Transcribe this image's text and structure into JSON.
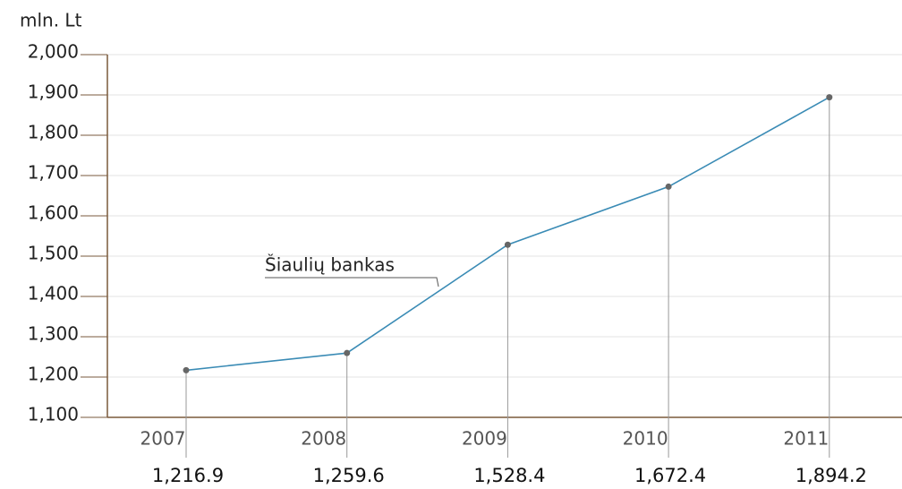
{
  "chart_data": {
    "type": "line",
    "y_axis_label": "mln. Lt",
    "annotation": "Šiaulių bankas",
    "categories": [
      "2007",
      "2008",
      "2009",
      "2010",
      "2011"
    ],
    "series": [
      {
        "name": "Šiaulių bankas",
        "color": "#3a8bb5",
        "values": [
          1216.9,
          1259.6,
          1528.4,
          1672.4,
          1894.2
        ],
        "value_labels": [
          "1,216.9",
          "1,259.6",
          "1,528.4",
          "1,672.4",
          "1,894.2"
        ]
      }
    ],
    "ylim": [
      1100,
      2000
    ],
    "yticks": [
      {
        "value": 1100,
        "label": "1,100"
      },
      {
        "value": 1200,
        "label": "1,200"
      },
      {
        "value": 1300,
        "label": "1,300"
      },
      {
        "value": 1400,
        "label": "1,400"
      },
      {
        "value": 1500,
        "label": "1,500"
      },
      {
        "value": 1600,
        "label": "1,600"
      },
      {
        "value": 1700,
        "label": "1,700"
      },
      {
        "value": 1800,
        "label": "1,800"
      },
      {
        "value": 1900,
        "label": "1,900"
      },
      {
        "value": 2000,
        "label": "2,000"
      }
    ],
    "grid": true
  }
}
